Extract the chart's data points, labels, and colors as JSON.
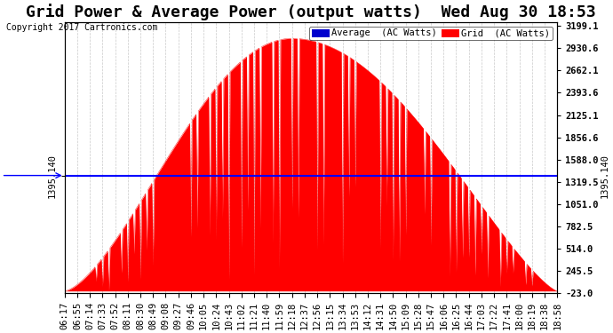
{
  "title": "Grid Power & Average Power (output watts)  Wed Aug 30 18:53",
  "copyright": "Copyright 2017 Cartronics.com",
  "avg_label": "Average  (AC Watts)",
  "grid_label": "Grid  (AC Watts)",
  "avg_value": 1395.14,
  "ymin": -23.0,
  "ymax": 3199.1,
  "yticks": [
    3199.1,
    2930.6,
    2662.1,
    2393.6,
    2125.1,
    1856.6,
    1588.0,
    1319.5,
    1051.0,
    782.5,
    514.0,
    245.5,
    -23.0
  ],
  "y_left_label": "1395.140",
  "y_right_label": "1395.140",
  "x_labels": [
    "06:17",
    "06:55",
    "07:14",
    "07:33",
    "07:52",
    "08:11",
    "08:30",
    "08:49",
    "09:08",
    "09:27",
    "09:46",
    "10:05",
    "10:24",
    "10:43",
    "11:02",
    "11:21",
    "11:40",
    "11:59",
    "12:18",
    "12:37",
    "12:56",
    "13:15",
    "13:34",
    "13:53",
    "14:12",
    "14:31",
    "14:50",
    "15:09",
    "15:28",
    "15:47",
    "16:06",
    "16:25",
    "16:44",
    "17:03",
    "17:22",
    "17:41",
    "18:00",
    "18:19",
    "18:38",
    "18:58"
  ],
  "fill_color": "#FF0000",
  "line_color": "#FF0000",
  "avg_line_color": "#0000FF",
  "bg_color": "#FFFFFF",
  "grid_color": "#BBBBBB",
  "title_fontsize": 13,
  "tick_fontsize": 7.5
}
